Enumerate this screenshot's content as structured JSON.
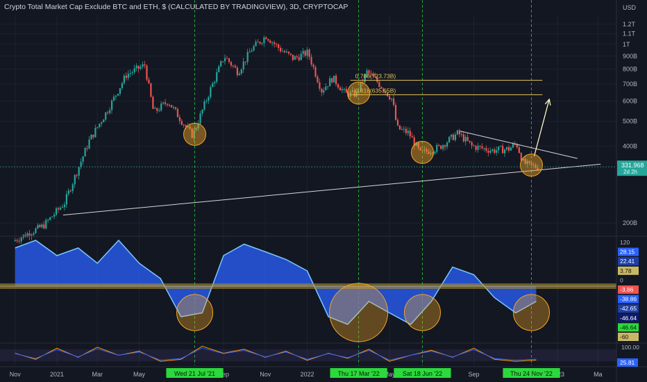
{
  "header": {
    "title": "Crypto Total Market Cap Exclude BTC and ETH, $ (CALCULATED BY TRADINGVIEW), 3D, CRYPTOCAP"
  },
  "colors": {
    "background": "#131722",
    "up": "#26a69a",
    "down": "#ef5350",
    "guide": "#2bd93c",
    "fib": "#e7c65a",
    "trend": "#d8d8d8",
    "circle_fill": "#f5a623",
    "wave_blue": "#2962ff",
    "wave_light": "#7cc8ff",
    "wave_gold": "#a88c2c"
  },
  "chart_data": [
    {
      "type": "candlestick",
      "price_axis_label": "USD",
      "y_scale": "log",
      "ylim": [
        180,
        1300
      ],
      "y_ticks": [
        "1.2T",
        "1.1T",
        "1T",
        "900B",
        "800B",
        "700B",
        "600B",
        "500B",
        "400B",
        "200B"
      ],
      "y_tick_values": [
        1200,
        1100,
        1000,
        900,
        800,
        700,
        600,
        500,
        400,
        200
      ],
      "current_price_label": "331.968",
      "countdown_label": "2d 2h",
      "current_price": 331.968,
      "x_ticks": [
        "Nov",
        "2021",
        "Mar",
        "May",
        "Sep",
        "Nov",
        "2022",
        "May",
        "Sep",
        "2023",
        "Ma"
      ],
      "x_tick_dates": [
        "2020-11-01",
        "2021-01-01",
        "2021-03-01",
        "2021-05-01",
        "2021-09-01",
        "2021-11-01",
        "2022-01-01",
        "2022-05-01",
        "2022-09-01",
        "2023-01-01",
        "2023-03-01"
      ],
      "marker_dates": [
        {
          "label": "Wed 21 Jul '21",
          "date": "2021-07-21"
        },
        {
          "label": "Thu 17 Mar '22",
          "date": "2022-03-17"
        },
        {
          "label": "Sat 18 Jun '22",
          "date": "2022-06-18"
        },
        {
          "label": "Thu 24 Nov '22",
          "date": "2022-11-24"
        }
      ],
      "price_path": [
        {
          "date": "2020-11-01",
          "value": 170
        },
        {
          "date": "2020-12-15",
          "value": 195
        },
        {
          "date": "2021-01-15",
          "value": 240
        },
        {
          "date": "2021-02-20",
          "value": 420
        },
        {
          "date": "2021-03-20",
          "value": 560
        },
        {
          "date": "2021-04-15",
          "value": 760
        },
        {
          "date": "2021-05-12",
          "value": 830
        },
        {
          "date": "2021-05-25",
          "value": 540
        },
        {
          "date": "2021-06-15",
          "value": 600
        },
        {
          "date": "2021-07-10",
          "value": 480
        },
        {
          "date": "2021-07-21",
          "value": 440
        },
        {
          "date": "2021-08-15",
          "value": 660
        },
        {
          "date": "2021-09-05",
          "value": 900
        },
        {
          "date": "2021-09-25",
          "value": 780
        },
        {
          "date": "2021-10-15",
          "value": 960
        },
        {
          "date": "2021-11-05",
          "value": 1080
        },
        {
          "date": "2021-11-25",
          "value": 960
        },
        {
          "date": "2021-12-15",
          "value": 880
        },
        {
          "date": "2022-01-05",
          "value": 930
        },
        {
          "date": "2022-01-25",
          "value": 660
        },
        {
          "date": "2022-02-10",
          "value": 740
        },
        {
          "date": "2022-03-01",
          "value": 640
        },
        {
          "date": "2022-03-17",
          "value": 640
        },
        {
          "date": "2022-04-01",
          "value": 780
        },
        {
          "date": "2022-04-15",
          "value": 720
        },
        {
          "date": "2022-05-08",
          "value": 610
        },
        {
          "date": "2022-05-15",
          "value": 470
        },
        {
          "date": "2022-06-01",
          "value": 450
        },
        {
          "date": "2022-06-18",
          "value": 375
        },
        {
          "date": "2022-07-15",
          "value": 395
        },
        {
          "date": "2022-08-12",
          "value": 450
        },
        {
          "date": "2022-09-01",
          "value": 400
        },
        {
          "date": "2022-10-01",
          "value": 385
        },
        {
          "date": "2022-10-25",
          "value": 390
        },
        {
          "date": "2022-11-05",
          "value": 410
        },
        {
          "date": "2022-11-15",
          "value": 345
        },
        {
          "date": "2022-11-24",
          "value": 335
        },
        {
          "date": "2022-12-05",
          "value": 332
        }
      ],
      "fib_levels": [
        {
          "label": "0.786(723.73B)",
          "value": 723.73
        },
        {
          "label": "0.618(635.65B)",
          "value": 635.65
        }
      ],
      "trendlines": [
        {
          "from": {
            "date": "2021-01-10",
            "value": 215
          },
          "to": {
            "date": "2023-03-05",
            "value": 340
          }
        },
        {
          "from": {
            "date": "2022-08-12",
            "value": 458
          },
          "to": {
            "date": "2023-01-30",
            "value": 358
          }
        }
      ],
      "projection_arrow": {
        "from": {
          "date": "2022-11-28",
          "value": 365
        },
        "to": {
          "date": "2022-12-20",
          "value": 610
        }
      },
      "highlight_circles": [
        {
          "date": "2021-07-21",
          "value": 445
        },
        {
          "date": "2022-03-17",
          "value": 645
        },
        {
          "date": "2022-06-18",
          "value": 378
        },
        {
          "date": "2022-11-24",
          "value": 337
        }
      ]
    },
    {
      "type": "area",
      "name": "wave-oscillator",
      "y_ticks": [
        "120",
        "28.15",
        "22.41",
        "3.78",
        "0",
        "-3.86",
        "-38.86",
        "-42.65",
        "-46.64",
        "-46.64",
        "-60"
      ],
      "x": [
        "2020-11-01",
        "2020-12-01",
        "2021-01-01",
        "2021-02-01",
        "2021-03-01",
        "2021-04-01",
        "2021-05-01",
        "2021-06-01",
        "2021-07-01",
        "2021-08-01",
        "2021-09-01",
        "2021-10-01",
        "2021-11-01",
        "2021-12-01",
        "2022-01-01",
        "2022-02-01",
        "2022-03-01",
        "2022-04-01",
        "2022-05-01",
        "2022-06-01",
        "2022-07-01",
        "2022-08-01",
        "2022-09-01",
        "2022-10-01",
        "2022-11-01",
        "2022-12-01"
      ],
      "values": [
        50,
        60,
        40,
        50,
        30,
        60,
        30,
        10,
        -40,
        -35,
        40,
        55,
        45,
        35,
        20,
        -40,
        -50,
        -20,
        -35,
        -50,
        -20,
        25,
        15,
        -15,
        -35,
        -20
      ]
    },
    {
      "type": "line",
      "name": "stochastic-oscillator",
      "y_ticks": [
        "100.00",
        "25.81"
      ],
      "x": [
        "2020-11-01",
        "2020-12-01",
        "2021-01-01",
        "2021-02-01",
        "2021-03-01",
        "2021-04-01",
        "2021-05-01",
        "2021-06-01",
        "2021-07-01",
        "2021-08-01",
        "2021-09-01",
        "2021-10-01",
        "2021-11-01",
        "2021-12-01",
        "2022-01-01",
        "2022-02-01",
        "2022-03-01",
        "2022-04-01",
        "2022-05-01",
        "2022-06-01",
        "2022-07-01",
        "2022-08-01",
        "2022-09-01",
        "2022-10-01",
        "2022-11-01",
        "2022-12-01"
      ],
      "values": [
        60,
        30,
        85,
        40,
        90,
        50,
        70,
        20,
        30,
        95,
        60,
        80,
        40,
        70,
        25,
        60,
        35,
        80,
        20,
        50,
        75,
        40,
        85,
        30,
        20,
        25.81
      ]
    }
  ]
}
